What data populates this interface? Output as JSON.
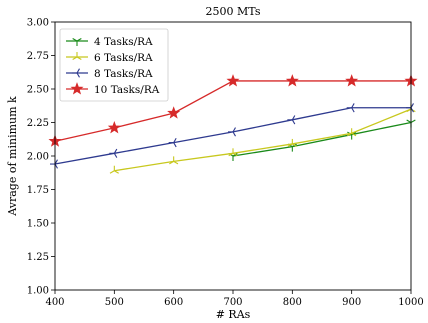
{
  "chart_data": {
    "type": "line",
    "title": "2500 MTs",
    "xlabel": "# RAs",
    "ylabel": "Avrage of minimum k",
    "xlim": [
      400,
      1000
    ],
    "ylim": [
      1.0,
      3.0
    ],
    "x_ticks": [
      "400",
      "500",
      "600",
      "700",
      "800",
      "900",
      "1000"
    ],
    "y_ticks": [
      "1.00",
      "1.25",
      "1.50",
      "1.75",
      "2.00",
      "2.25",
      "2.50",
      "2.75",
      "3.00"
    ],
    "grid": false,
    "legend_position": "top-left",
    "series": [
      {
        "name": "4 Tasks/RA",
        "color": "#1a8a1a",
        "marker": "tri-down",
        "x": [
          700,
          800,
          900,
          1000
        ],
        "y": [
          2.0,
          2.07,
          2.16,
          2.25
        ]
      },
      {
        "name": "6 Tasks/RA",
        "color": "#c8c81e",
        "marker": "tri-up",
        "x": [
          500,
          600,
          700,
          800,
          900,
          1000
        ],
        "y": [
          1.89,
          1.96,
          2.02,
          2.09,
          2.17,
          2.35
        ]
      },
      {
        "name": "8 Tasks/RA",
        "color": "#2e3a8f",
        "marker": "tri-left",
        "x": [
          400,
          500,
          600,
          700,
          800,
          900,
          1000
        ],
        "y": [
          1.94,
          2.02,
          2.1,
          2.18,
          2.27,
          2.36,
          2.36
        ]
      },
      {
        "name": "10 Tasks/RA",
        "color": "#d62a2a",
        "marker": "star",
        "x": [
          400,
          500,
          600,
          700,
          800,
          900,
          1000
        ],
        "y": [
          2.11,
          2.21,
          2.32,
          2.56,
          2.56,
          2.56,
          2.56
        ]
      }
    ]
  }
}
